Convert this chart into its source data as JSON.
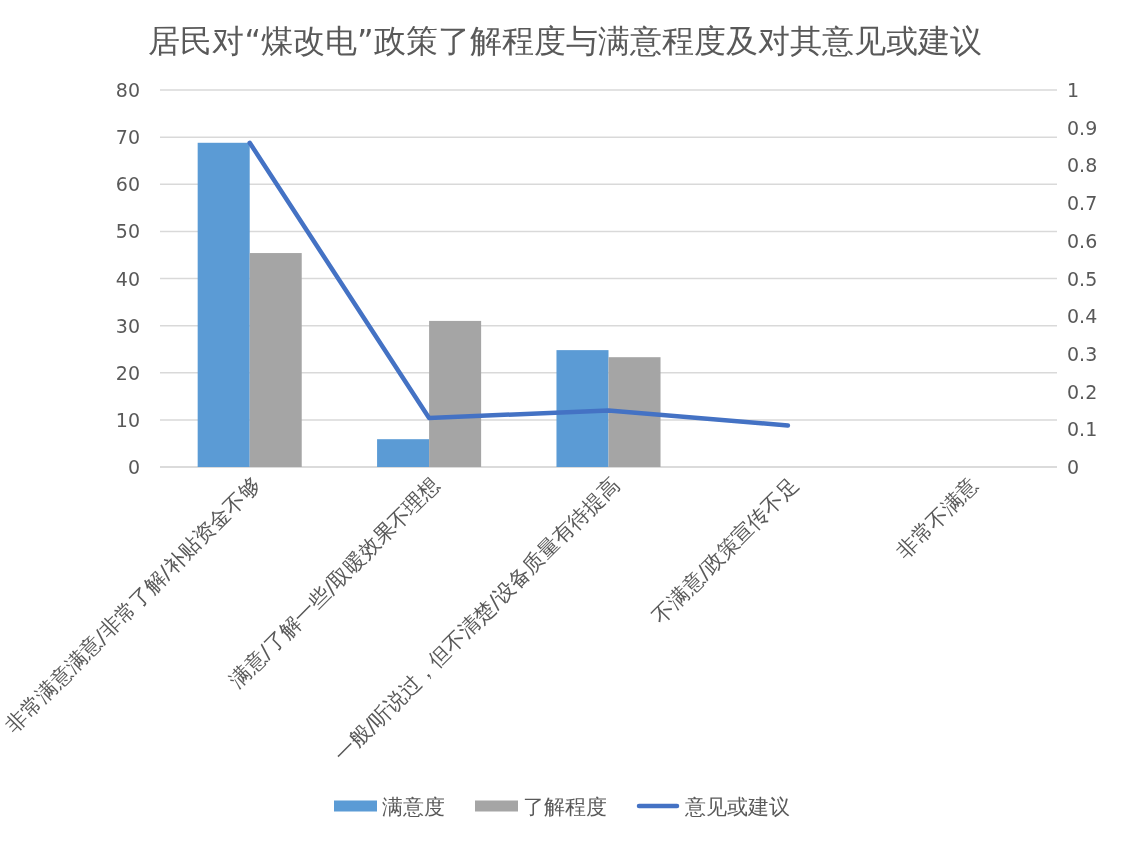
{
  "chart_data": {
    "type": "bar",
    "title": "居民对“煤改电”政策了解程度与满意程度及对其意见或建议",
    "categories": [
      "非常满意满意/非常了解/补贴资金不够",
      "满意/了解一些/取暖效果不理想",
      "一般/听说过，但不清楚/设备质量有待提高",
      "不满意/政策宣传不足",
      "非常不满意"
    ],
    "series": [
      {
        "name": "满意度",
        "color": "#5b9bd5",
        "values": [
          68.8,
          5.9,
          24.8,
          null,
          null
        ]
      },
      {
        "name": "了解程度",
        "color": "#a5a5a5",
        "values": [
          45.4,
          31.0,
          23.3,
          null,
          null
        ]
      },
      {
        "name": "意见或建议",
        "type": "line",
        "axis": "y2",
        "color": "#4472c4",
        "values": [
          0.86,
          0.13,
          0.15,
          0.11,
          null
        ]
      }
    ],
    "ylim": [
      0,
      80
    ],
    "yticks": [
      0,
      10,
      20,
      30,
      40,
      50,
      60,
      70,
      80
    ],
    "y2lim": [
      0,
      1
    ],
    "y2ticks": [
      0,
      0.1,
      0.2,
      0.3,
      0.4,
      0.5,
      0.6,
      0.7,
      0.8,
      0.9,
      1
    ],
    "grid": "y",
    "legend": "bottom"
  }
}
